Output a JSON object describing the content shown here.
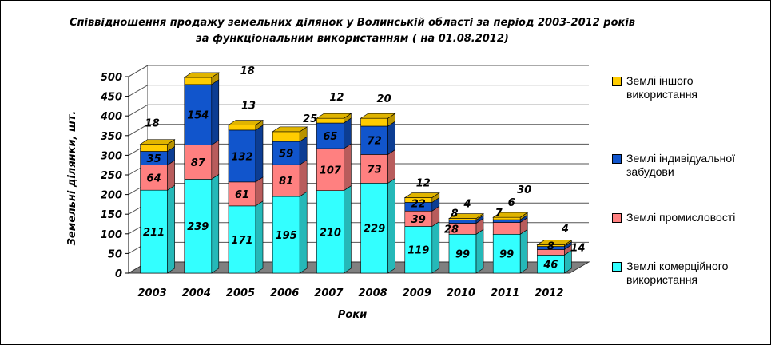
{
  "chart_data": {
    "type": "bar",
    "stacked": true,
    "three_d": true,
    "title": "Співвідношення продажу земельних ділянок у Волинській області за період 2003-2012 років",
    "subtitle": "за функціональним використанням ( на 01.08.2012)",
    "xlabel": "Роки",
    "ylabel": "Земельні ділянки, шт.",
    "ylim": [
      0,
      500
    ],
    "yticks": [
      "0",
      "50",
      "100",
      "150",
      "200",
      "250",
      "300",
      "350",
      "400",
      "450",
      "500"
    ],
    "grid": true,
    "legend_position": "right",
    "categories": [
      "2003",
      "2004",
      "2005",
      "2006",
      "2007",
      "2008",
      "2009",
      "2010",
      "2011",
      "2012"
    ],
    "series": [
      {
        "name": "Землі комерційного використання",
        "color": "#33ffff",
        "values": [
          211,
          239,
          171,
          195,
          210,
          229,
          119,
          99,
          99,
          46
        ]
      },
      {
        "name": "Землі промисловості",
        "color": "#ff8080",
        "values": [
          64,
          87,
          61,
          81,
          107,
          73,
          39,
          28,
          30,
          14
        ]
      },
      {
        "name": "Землі індивідуальної забудови",
        "color": "#1155cc",
        "values": [
          35,
          154,
          132,
          59,
          65,
          72,
          22,
          8,
          7,
          8
        ]
      },
      {
        "name": "Землі іншого використання",
        "color": "#ffcc00",
        "values": [
          18,
          18,
          13,
          25,
          12,
          20,
          12,
          4,
          6,
          4
        ]
      }
    ],
    "legend_order": [
      3,
      2,
      1,
      0
    ]
  }
}
